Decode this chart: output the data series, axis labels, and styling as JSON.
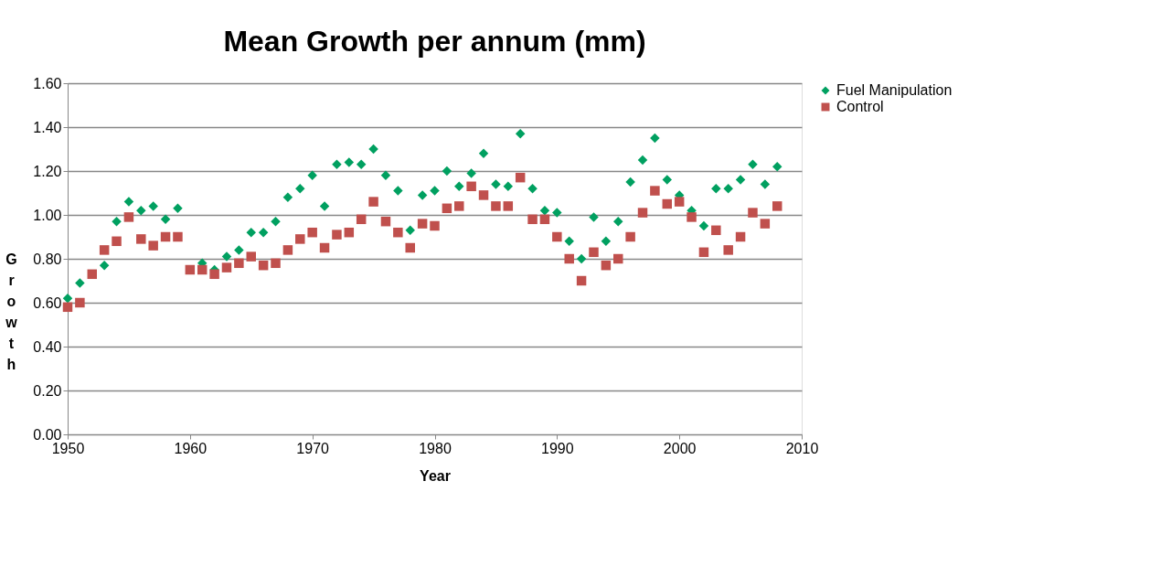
{
  "chart_data": {
    "type": "scatter",
    "title": "Mean Growth per annum (mm)",
    "xlabel": "Year",
    "ylabel": "Growth",
    "x": [
      1950,
      1951,
      1952,
      1953,
      1954,
      1955,
      1956,
      1957,
      1958,
      1959,
      1960,
      1961,
      1962,
      1963,
      1964,
      1965,
      1966,
      1967,
      1968,
      1969,
      1970,
      1971,
      1972,
      1973,
      1974,
      1975,
      1976,
      1977,
      1978,
      1979,
      1980,
      1981,
      1982,
      1983,
      1984,
      1985,
      1986,
      1987,
      1988,
      1989,
      1990,
      1991,
      1992,
      1993,
      1994,
      1995,
      1996,
      1997,
      1998,
      1999,
      2000,
      2001,
      2002,
      2003,
      2004,
      2005,
      2006,
      2007,
      2008
    ],
    "series": [
      {
        "name": "Fuel Manipulation",
        "color": "#00a060",
        "marker": "diamond",
        "values": [
          0.62,
          0.69,
          null,
          0.77,
          0.97,
          1.06,
          1.02,
          1.04,
          0.98,
          1.03,
          null,
          0.78,
          0.75,
          0.81,
          0.84,
          0.92,
          0.92,
          0.97,
          1.08,
          1.12,
          1.18,
          1.04,
          1.23,
          1.24,
          1.23,
          1.3,
          1.18,
          1.11,
          0.93,
          1.09,
          1.11,
          1.2,
          1.13,
          1.19,
          1.28,
          1.14,
          1.13,
          1.37,
          1.12,
          1.02,
          1.01,
          0.88,
          0.8,
          0.99,
          0.88,
          0.97,
          1.15,
          1.25,
          1.35,
          1.16,
          1.09,
          1.02,
          0.95,
          1.12,
          1.12,
          1.16,
          1.23,
          1.14,
          1.22
        ]
      },
      {
        "name": "Control",
        "color": "#c0504d",
        "marker": "square",
        "values": [
          0.58,
          0.6,
          0.73,
          0.84,
          0.88,
          0.99,
          0.89,
          0.86,
          0.9,
          0.9,
          0.75,
          0.75,
          0.73,
          0.76,
          0.78,
          0.81,
          0.77,
          0.78,
          0.84,
          0.89,
          0.92,
          0.85,
          0.91,
          0.92,
          0.98,
          1.06,
          0.97,
          0.92,
          0.85,
          0.96,
          0.95,
          1.03,
          1.04,
          1.13,
          1.09,
          1.04,
          1.04,
          1.17,
          0.98,
          0.98,
          0.9,
          0.8,
          0.7,
          0.83,
          0.77,
          0.8,
          0.9,
          1.01,
          1.11,
          1.05,
          1.06,
          0.99,
          0.83,
          0.93,
          0.84,
          0.9,
          1.01,
          0.96,
          1.04
        ]
      }
    ],
    "xlim": [
      1950,
      2010
    ],
    "xticks": [
      1950,
      1960,
      1970,
      1980,
      1990,
      2000,
      2010
    ],
    "ylim": [
      0,
      1.6
    ],
    "yticks": [
      {
        "value": 0,
        "label": "0.00"
      },
      {
        "value": 0.2,
        "label": "0.20"
      },
      {
        "value": 0.4,
        "label": "0.40"
      },
      {
        "value": 0.6,
        "label": "0.60"
      },
      {
        "value": 0.8,
        "label": "0.80"
      },
      {
        "value": 1.0,
        "label": "1.00"
      },
      {
        "value": 1.2,
        "label": "1.20"
      },
      {
        "value": 1.4,
        "label": "1.40"
      },
      {
        "value": 1.6,
        "label": "1.60"
      }
    ],
    "grid": "y",
    "legend": "right"
  }
}
